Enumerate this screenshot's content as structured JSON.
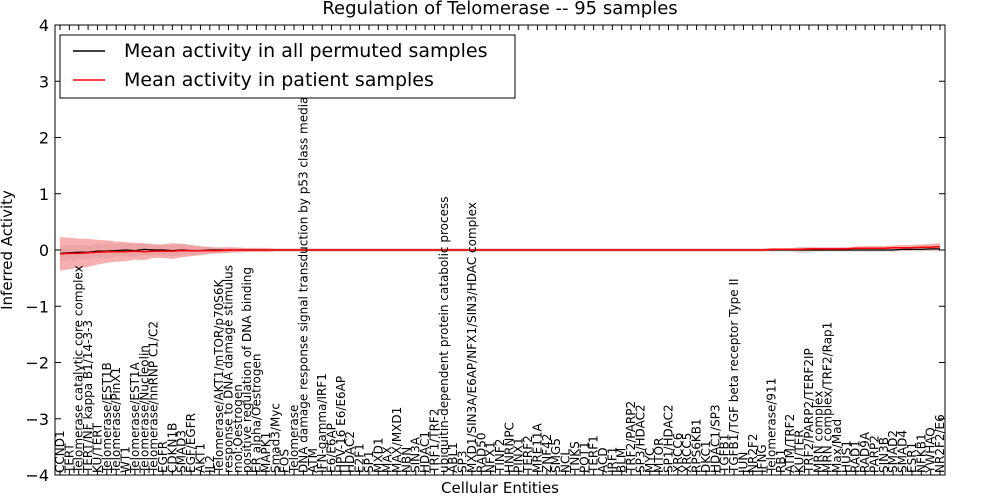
{
  "chart_data": {
    "type": "line",
    "title": "Regulation of Telomerase -- 95 samples",
    "xlabel": "Cellular Entities",
    "ylabel": "Inferred Activity",
    "ylim": [
      -4,
      4
    ],
    "yticks": [
      -4,
      -3,
      -2,
      -1,
      0,
      1,
      2,
      3,
      4
    ],
    "legend_position": "top-left",
    "categories": [
      "CCND1",
      "TERT",
      "Telomerase catalytic core complex",
      "TERT/NF kappa B1/14-3-3",
      "KU/TERT",
      "Telomerase/EST1B",
      "Telomerase/PinX1",
      "WT1",
      "Telomerase/EST1A",
      "Telomerase/Nucleolin",
      "Telomerase/hnRNP C1/C2",
      "EGFR",
      "CDKN1B",
      "SMAD3",
      "EGF/EGFR",
      "AKT1",
      "IL2",
      "Telomerase/AKT1/mTOR/p70S6K",
      "response to DNA damage stimulus",
      "mol:Oestrogen",
      "positive regulation of DNA binding",
      "ER alpha/Oestrogen",
      "MAPK1",
      "Smad3/Myc",
      "FOS",
      "Telomerase",
      "DNA damage response signal transduction by p53 class mediator",
      "ATM",
      "IFN-gamma/IRF1",
      "E6/E6AP",
      "HPV-16 E6/E6AP",
      "HDAC2",
      "E2F1",
      "SP1",
      "MXD1",
      "MAX",
      "MAX/MXD1",
      "NBN",
      "SIN3A",
      "HDAC1",
      "TRF1/TRF2",
      "ubiquitin-dependent protein catabolic process",
      "ABL1",
      "SP3",
      "MXD1/SIN3A/E6AP/NFX1/SIN3/HDAC complex",
      "RAD50",
      "NFX1",
      "TINF2",
      "HNRNPC",
      "PINX1",
      "TERF2",
      "MRE11A",
      "ZNF42",
      "SMG5",
      "NCL",
      "TNKS",
      "POT1",
      "TERF1",
      "ACD",
      "IRF1",
      "BLM",
      "TRF2/PARP2",
      "SP3/HDAC2",
      "MYC",
      "MTOR",
      "SP1/HDAC2",
      "XRCC6",
      "XRCC5",
      "RPS6KB1",
      "DKC1",
      "HDAC1/SP3",
      "TGFB1",
      "TGFB1/TGF beta receptor Type II",
      "JUN",
      "NR2F2",
      "IFNG",
      "Telomerase/911",
      "RB1",
      "ATM/TRF2",
      "KU/TER",
      "TRF2/PARP2/TERF2IP",
      "MRN complex",
      "MRN complex/TRF2/Rap1",
      "Max/Mad",
      "HUS1",
      "RAD1",
      "RAD9A",
      "PARP2",
      "SIN3B",
      "SMAD2",
      "SMAD4",
      "ESR1",
      "NFKB1",
      "YWHAQ",
      "NR2F2/E6"
    ],
    "series": [
      {
        "name": "Mean activity in all permuted samples",
        "color": "#000000",
        "values": [
          -0.06,
          -0.05,
          -0.04,
          -0.04,
          -0.02,
          -0.02,
          -0.01,
          0,
          -0.01,
          0.01,
          0,
          0,
          -0.01,
          0,
          -0.01,
          -0.01,
          0,
          0,
          0,
          0,
          0,
          0,
          0,
          0,
          0,
          0,
          0,
          0,
          0,
          0,
          0,
          0,
          0,
          0,
          0,
          0,
          0,
          0,
          0,
          0,
          0,
          0,
          0,
          0,
          0,
          0,
          0,
          0,
          0,
          0,
          0,
          0,
          0,
          0,
          0,
          0,
          0,
          0,
          0,
          0,
          0,
          0,
          0,
          0,
          0,
          0,
          0,
          0,
          0,
          0,
          0,
          0,
          0,
          0,
          0,
          0,
          0,
          0,
          0,
          0,
          0,
          0,
          0,
          0,
          0,
          0,
          0,
          0,
          0,
          0,
          0.01,
          0.01,
          0.01,
          0.02,
          0.02
        ]
      },
      {
        "name": "Mean activity in patient samples",
        "color": "#ff0000",
        "values": [
          -0.07,
          -0.06,
          -0.06,
          -0.05,
          -0.04,
          -0.03,
          -0.03,
          -0.03,
          -0.02,
          -0.03,
          -0.02,
          -0.02,
          -0.02,
          -0.01,
          -0.01,
          -0.01,
          -0.01,
          -0.01,
          0,
          0,
          0,
          0,
          0,
          0,
          0,
          0,
          0,
          0,
          0,
          0,
          0,
          0,
          0,
          0,
          0,
          0,
          0,
          0,
          0,
          0,
          0,
          0,
          0,
          0,
          0,
          0,
          0,
          0,
          0,
          0,
          0,
          0,
          0,
          0,
          0,
          0,
          0,
          0,
          0,
          0,
          0,
          0,
          0,
          0,
          0,
          0,
          0,
          0,
          0,
          0,
          0,
          0,
          0,
          0,
          0,
          0,
          0.01,
          0.01,
          0.01,
          0.01,
          0.02,
          0.02,
          0.02,
          0.02,
          0.02,
          0.03,
          0.03,
          0.03,
          0.03,
          0.04,
          0.04,
          0.04,
          0.05,
          0.05,
          0.06
        ]
      }
    ],
    "bands": [
      {
        "series": "Mean activity in all permuted samples",
        "color": "#bfbfbf",
        "half_width": [
          0.14,
          0.13,
          0.12,
          0.12,
          0.12,
          0.12,
          0.11,
          0.12,
          0.11,
          0.11,
          0.1,
          0.09,
          0.1,
          0.1,
          0.08,
          0.07,
          0.06,
          0.05,
          0.05,
          0.05,
          0.04,
          0.04,
          0.04,
          0.03,
          0.03,
          0.03,
          0.03,
          0.03,
          0.03,
          0.03,
          0.03,
          0.03,
          0.03,
          0.03,
          0.03,
          0.03,
          0.03,
          0.03,
          0.03,
          0.03,
          0.03,
          0.03,
          0.03,
          0.03,
          0.03,
          0.03,
          0.03,
          0.03,
          0.03,
          0.03,
          0.03,
          0.03,
          0.03,
          0.03,
          0.03,
          0.03,
          0.03,
          0.03,
          0.03,
          0.03,
          0.03,
          0.03,
          0.03,
          0.03,
          0.03,
          0.03,
          0.03,
          0.03,
          0.03,
          0.03,
          0.03,
          0.03,
          0.03,
          0.03,
          0.03,
          0.03,
          0.03,
          0.03,
          0.03,
          0.06,
          0.05,
          0.03,
          0.03,
          0.03,
          0.03,
          0.03,
          0.03,
          0.03,
          0.03,
          0.03,
          0.03,
          0.03,
          0.04,
          0.04,
          0.05
        ]
      },
      {
        "series": "Mean activity in patient samples",
        "color": "#f28b8b",
        "half_width": [
          0.3,
          0.28,
          0.26,
          0.25,
          0.22,
          0.2,
          0.18,
          0.17,
          0.15,
          0.15,
          0.12,
          0.12,
          0.14,
          0.12,
          0.1,
          0.08,
          0.06,
          0.05,
          0.05,
          0.04,
          0.03,
          0.03,
          0.03,
          0.02,
          0.02,
          0.02,
          0.02,
          0.02,
          0.02,
          0.02,
          0.02,
          0.02,
          0.02,
          0.02,
          0.02,
          0.02,
          0.02,
          0.02,
          0.02,
          0.02,
          0.02,
          0.02,
          0.02,
          0.02,
          0.02,
          0.02,
          0.02,
          0.02,
          0.02,
          0.02,
          0.02,
          0.02,
          0.02,
          0.02,
          0.02,
          0.02,
          0.02,
          0.02,
          0.02,
          0.02,
          0.02,
          0.02,
          0.02,
          0.02,
          0.02,
          0.02,
          0.02,
          0.02,
          0.02,
          0.02,
          0.02,
          0.02,
          0.02,
          0.02,
          0.02,
          0.02,
          0.02,
          0.02,
          0.02,
          0.03,
          0.03,
          0.03,
          0.03,
          0.03,
          0.03,
          0.03,
          0.04,
          0.04,
          0.04,
          0.04,
          0.05,
          0.05,
          0.05,
          0.06,
          0.06
        ]
      }
    ]
  }
}
